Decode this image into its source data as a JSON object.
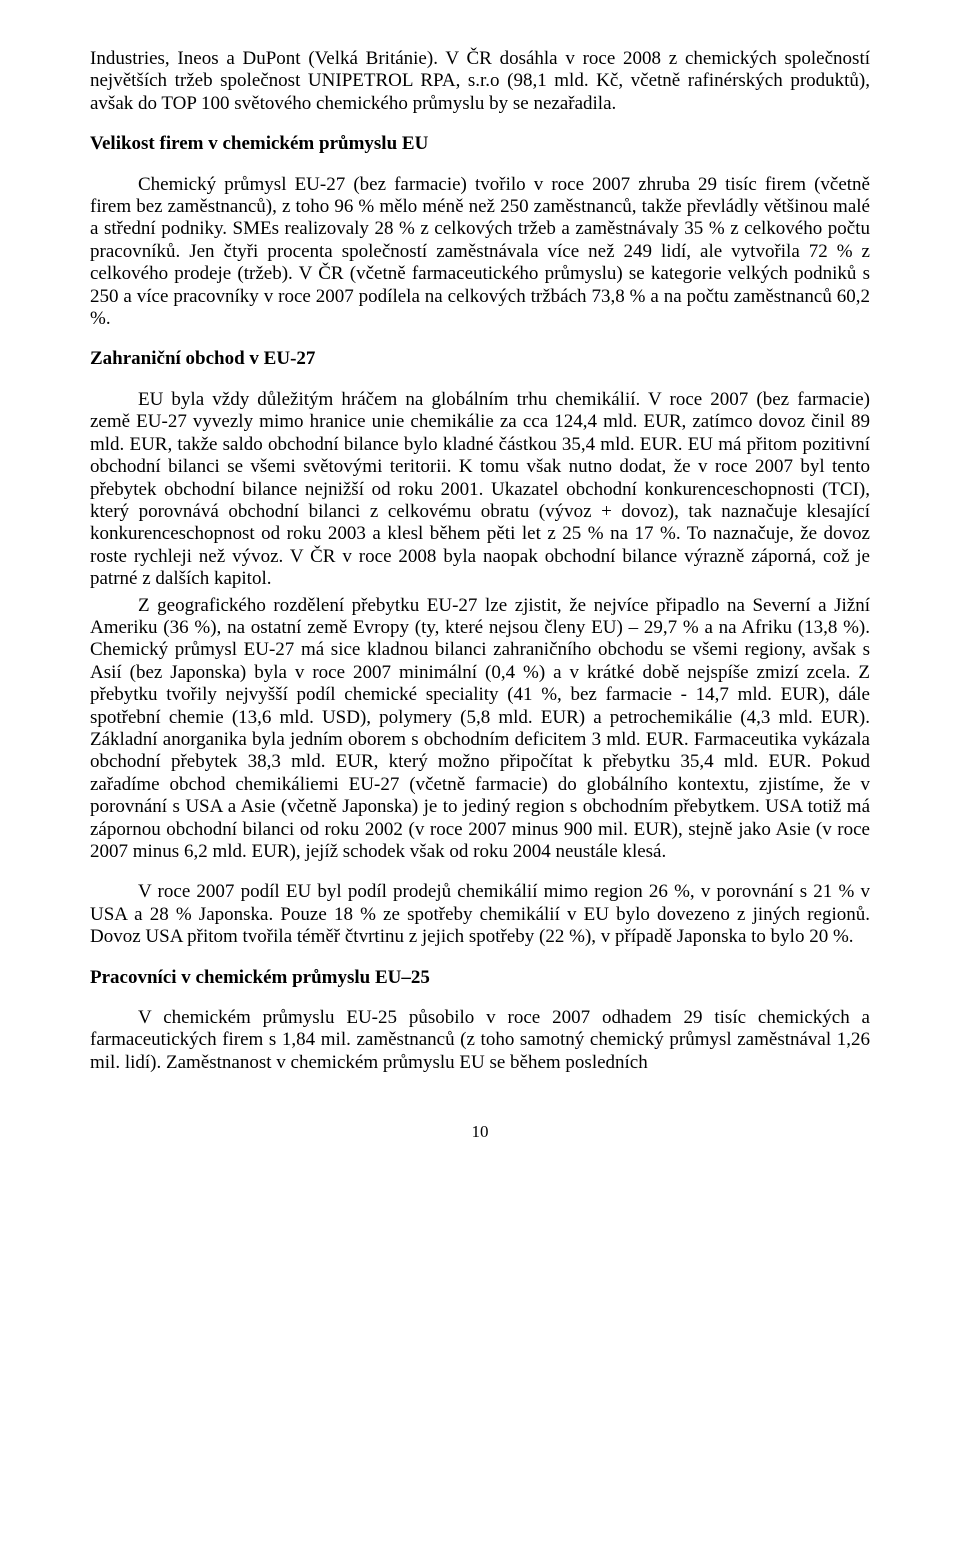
{
  "p1": "Industries, Ineos a DuPont (Velká Británie). V ČR dosáhla v roce 2008 z chemických společností největších tržeb společnost UNIPETROL RPA, s.r.o (98,1 mld. Kč, včetně rafinérských produktů), avšak do TOP 100 světového chemického průmyslu by se nezařadila.",
  "h1": "Velikost firem v chemickém průmyslu EU",
  "p2": "Chemický průmysl EU-27 (bez farmacie) tvořilo v roce 2007 zhruba 29 tisíc firem (včetně firem bez zaměstnanců), z toho 96 % mělo méně než 250 zaměstnanců, takže převládly většinou malé a střední podniky. SMEs realizovaly 28 % z celkových tržeb a zaměstnávaly 35 % z celkového počtu pracovníků. Jen čtyři procenta společností zaměstnávala více než 249 lidí, ale vytvořila 72 % z celkového prodeje (tržeb). V ČR (včetně farmaceutického průmyslu) se kategorie velkých podniků s 250 a více pracovníky v roce 2007 podílela na celkových tržbách 73,8 % a na počtu zaměstnanců 60,2 %.",
  "h2": "Zahraniční obchod v EU-27",
  "p3": "EU byla vždy důležitým hráčem na globálním trhu chemikálií. V roce 2007 (bez farmacie) země EU-27 vyvezly mimo hranice unie chemikálie za cca 124,4 mld. EUR, zatímco dovoz činil 89 mld. EUR, takže saldo obchodní bilance bylo kladné částkou 35,4 mld. EUR. EU má přitom pozitivní obchodní bilanci se všemi světovými teritorii. K tomu však nutno dodat, že v roce 2007 byl tento přebytek obchodní bilance nejnižší od roku 2001. Ukazatel obchodní konkurenceschopnosti (TCI), který porovnává obchodní bilanci z celkovému obratu (vývoz + dovoz), tak naznačuje klesající konkurenceschopnost od roku 2003 a klesl během pěti let z 25 % na 17 %. To naznačuje, že dovoz roste rychleji než vývoz. V ČR v roce 2008 byla naopak obchodní bilance výrazně záporná, což je patrné z dalších kapitol.",
  "p4": "Z geografického rozdělení přebytku EU-27 lze zjistit, že nejvíce připadlo na Severní a Jižní Ameriku (36 %), na ostatní země Evropy (ty, které nejsou členy EU) – 29,7 % a na Afriku (13,8 %). Chemický průmysl EU-27 má sice kladnou bilanci zahraničního obchodu se všemi regiony, avšak s Asií (bez Japonska) byla v roce 2007 minimální (0,4 %) a v krátké době nejspíše zmizí zcela. Z přebytku tvořily nejvyšší podíl chemické speciality (41 %, bez farmacie - 14,7 mld. EUR), dále spotřební chemie (13,6 mld. USD), polymery (5,8 mld. EUR) a petrochemikálie (4,3 mld. EUR). Základní anorganika byla jedním oborem s obchodním deficitem 3 mld. EUR. Farmaceutika vykázala obchodní přebytek 38,3 mld. EUR, který možno připočítat k přebytku 35,4 mld. EUR. Pokud zařadíme obchod chemikáliemi EU-27 (včetně farmacie) do globálního kontextu, zjistíme, že v porovnání s USA a Asie (včetně Japonska) je to jediný region s obchodním přebytkem. USA totiž má zápornou obchodní bilanci od roku 2002 (v roce 2007 minus 900 mil. EUR), stejně jako Asie (v roce 2007 minus 6,2 mld. EUR), jejíž schodek však od roku 2004 neustále klesá.",
  "p5": "V roce 2007 podíl EU byl podíl prodejů chemikálií mimo region 26 %, v porovnání s 21 % v USA a 28 % Japonska. Pouze 18 % ze spotřeby chemikálií v EU bylo dovezeno z jiných regionů. Dovoz USA přitom tvořila téměř čtvrtinu z jejich spotřeby (22 %), v případě Japonska to bylo 20 %.",
  "h3": "Pracovníci v chemickém průmyslu EU–25",
  "p6": "V chemickém průmyslu EU-25 působilo v roce 2007 odhadem 29 tisíc chemických a farmaceutických firem s 1,84 mil. zaměstnanců (z toho samotný chemický průmysl zaměstnával 1,26 mil. lidí). Zaměstnanost v chemickém průmyslu EU se během posledních",
  "pageNumber": "10"
}
